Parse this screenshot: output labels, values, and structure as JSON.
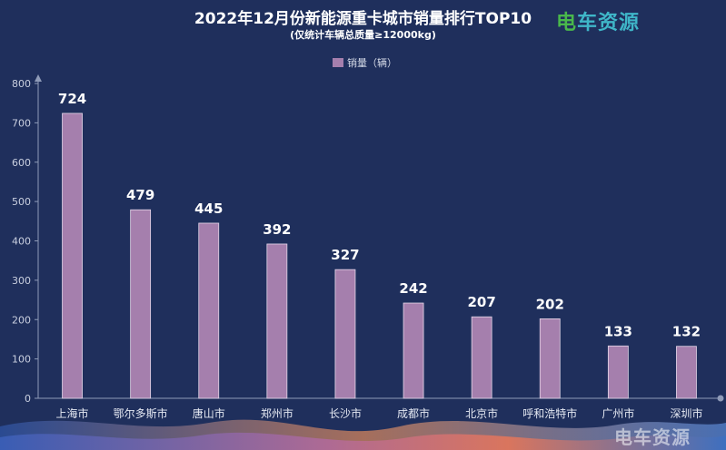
{
  "header": {
    "title": "2022年12月份新能源重卡城市销量排行TOP10",
    "subtitle": "(仅统计车辆总质量≥12000kg)",
    "logo_left": "电",
    "logo_right": "车资源",
    "watermark": "电车资源"
  },
  "legend": {
    "label": "销量（辆）"
  },
  "colors": {
    "bar": "#a57fad",
    "background": "#1f2f5c",
    "axis": "#8f9bb8"
  },
  "chart_data": {
    "type": "bar",
    "title": "2022年12月份新能源重卡城市销量排行TOP10",
    "subtitle": "(仅统计车辆总质量≥12000kg)",
    "categories": [
      "上海市",
      "鄂尔多斯市",
      "唐山市",
      "郑州市",
      "长沙市",
      "成都市",
      "北京市",
      "呼和浩特市",
      "广州市",
      "深圳市"
    ],
    "series": [
      {
        "name": "销量（辆）",
        "values": [
          724,
          479,
          445,
          392,
          327,
          242,
          207,
          202,
          133,
          132
        ]
      }
    ],
    "ylim": [
      0,
      800
    ],
    "yticks": [
      0,
      100,
      200,
      300,
      400,
      500,
      600,
      700,
      800
    ],
    "grid": false,
    "legend_position": "top-center",
    "data_labels": true
  }
}
